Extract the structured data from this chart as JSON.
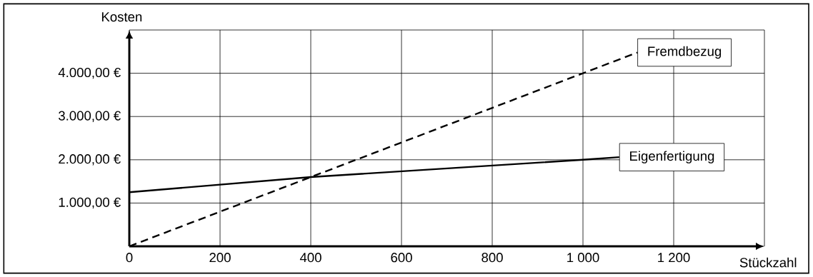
{
  "chart_data": {
    "type": "line",
    "xlabel": "Stückzahl",
    "ylabel": "Kosten",
    "xlim": [
      0,
      1400
    ],
    "ylim": [
      0,
      5000
    ],
    "xticks": [
      0,
      200,
      400,
      600,
      800,
      {
        "value": 1000,
        "label": "1 000"
      },
      {
        "value": 1200,
        "label": "1 200"
      },
      {
        "value": 1400,
        "label": null
      }
    ],
    "yticks": [
      {
        "value": 1000,
        "label": "1.000,00 €"
      },
      {
        "value": 2000,
        "label": "2.000,00 €"
      },
      {
        "value": 3000,
        "label": "3.000,00 €"
      },
      {
        "value": 4000,
        "label": "4.000,00 €"
      },
      {
        "value": 5000,
        "label": null
      }
    ],
    "grid": true,
    "series": [
      {
        "name": "Eigenfertigung",
        "color": "#000000",
        "line_style": "solid",
        "x": [
          0,
          400,
          1000,
          1080
        ],
        "values": [
          1250,
          1600,
          2000,
          2060
        ]
      },
      {
        "name": "Fremdbezug",
        "color": "#000000",
        "line_style": "dashed",
        "x": [
          0,
          400,
          1000,
          1120
        ],
        "values": [
          0,
          1600,
          4000,
          4480
        ]
      }
    ]
  }
}
